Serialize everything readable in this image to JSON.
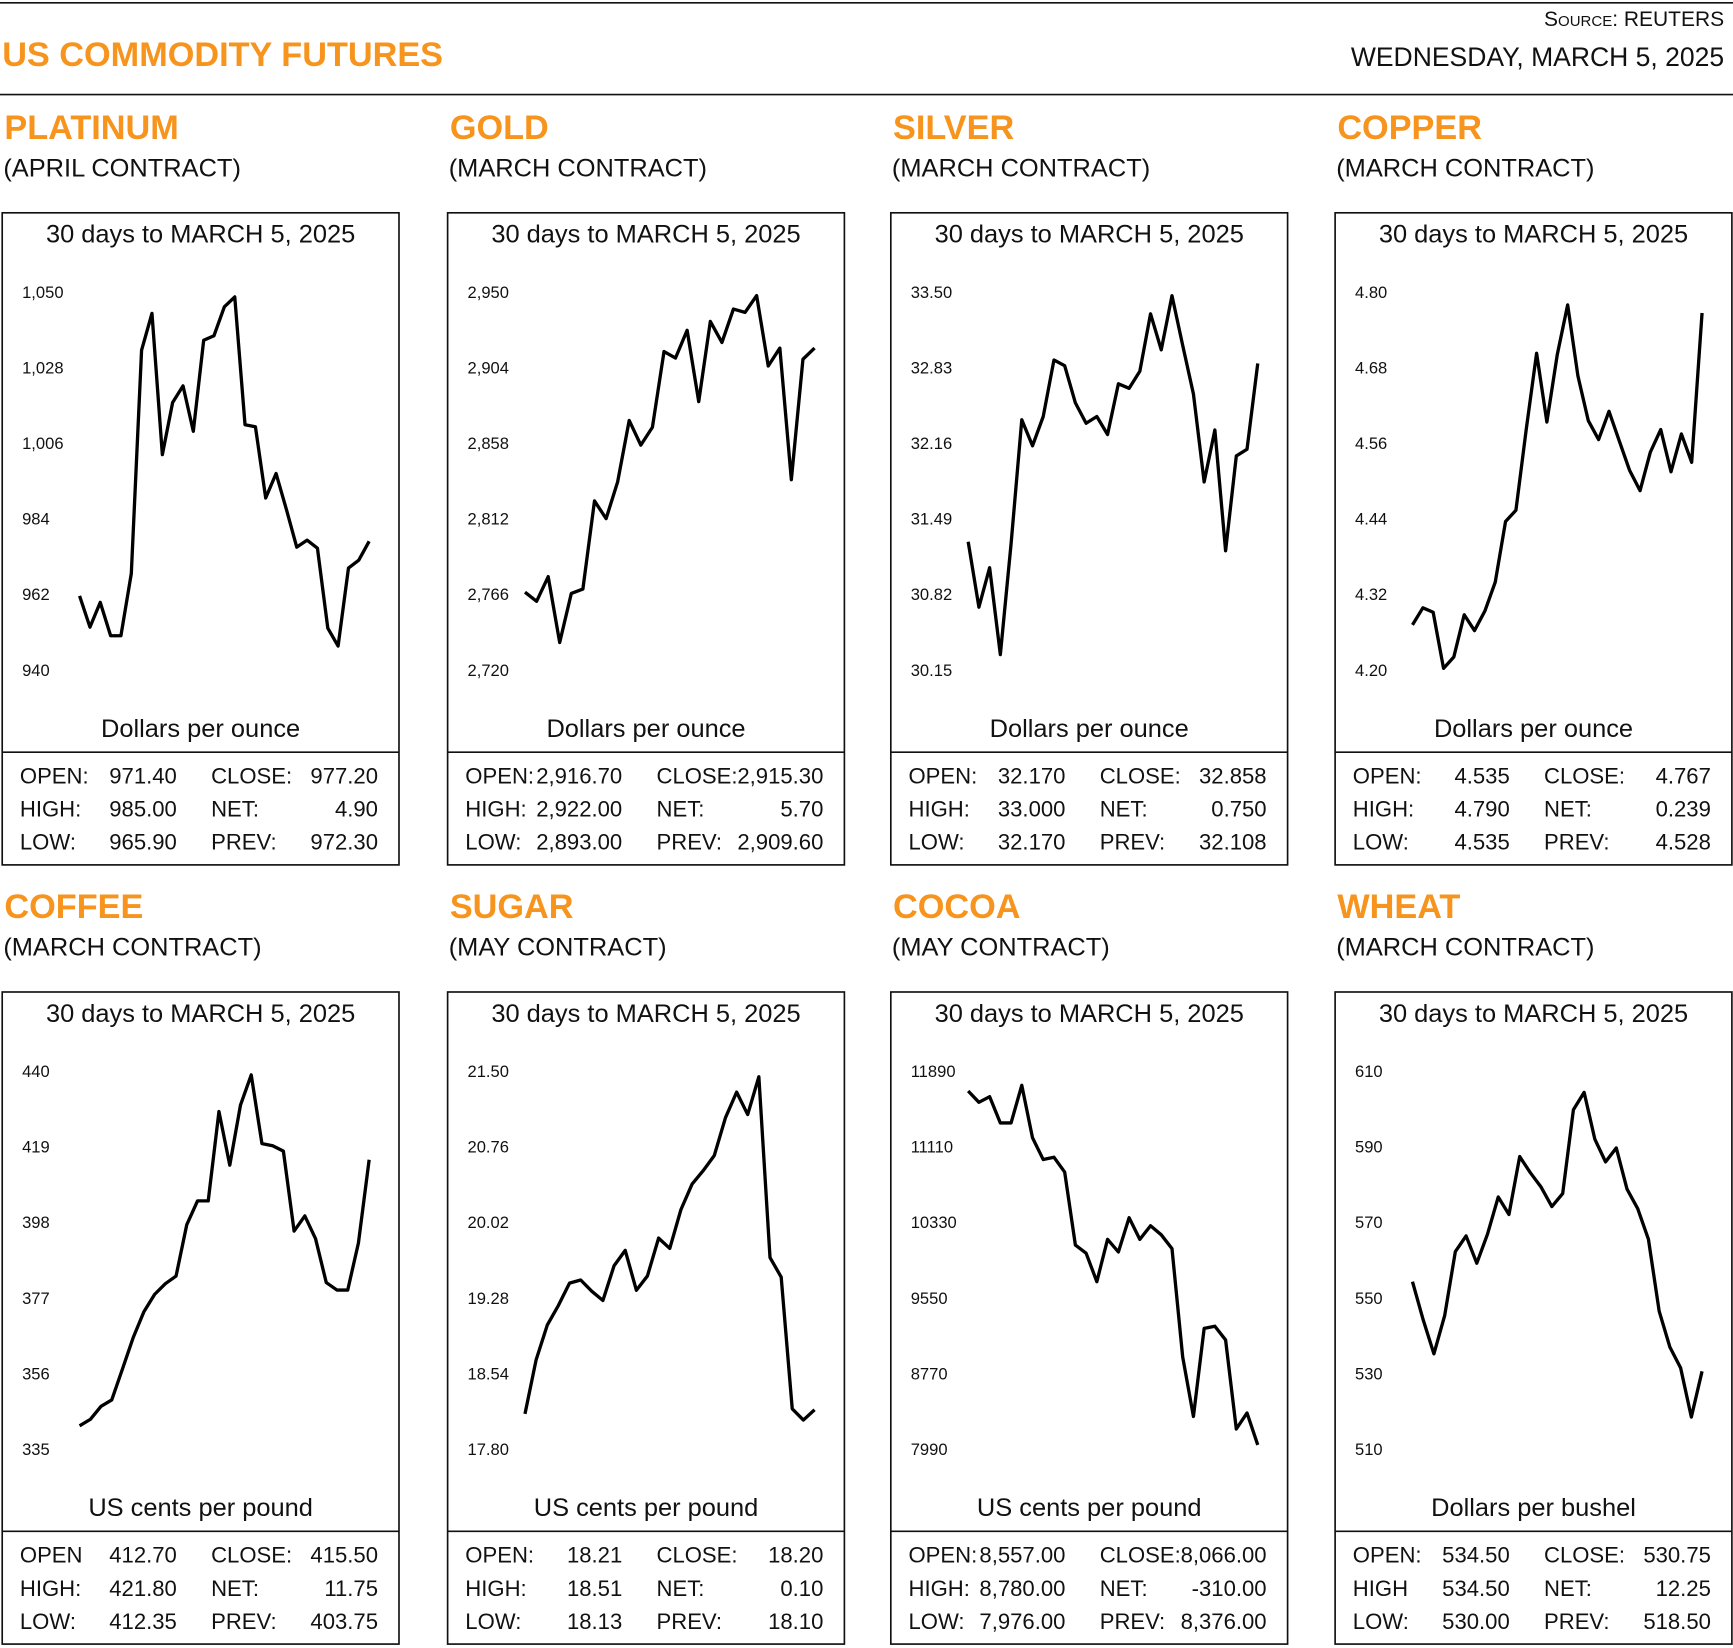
{
  "header": {
    "title": "US COMMODITY FUTURES",
    "source": "Source: REUTERS",
    "date": "WEDNESDAY, MARCH 5, 2025"
  },
  "chart_data": [
    {
      "type": "line",
      "title": "PLATINUM",
      "subtitle": "(APRIL CONTRACT)",
      "caption": "30 days to MARCH 5, 2025",
      "ylabel": "Dollars per ounce",
      "color": "#000000",
      "ylim": [
        940,
        1050
      ],
      "yticks": [
        940,
        962,
        984,
        {
          "value": 1006,
          "label": "1,006"
        },
        {
          "value": 1028,
          "label": "1,028"
        },
        {
          "value": 1050,
          "label": "1,050"
        }
      ],
      "values": [
        962.0,
        952.9,
        960.1,
        950.4,
        950.4,
        968.5,
        1033.5,
        1044.2,
        1003.1,
        1018.3,
        1023.1,
        1009.9,
        1036.4,
        1037.7,
        1046.1,
        1049.0,
        1011.8,
        1011.2,
        990.5,
        997.6,
        987.2,
        976.2,
        978.2,
        975.9,
        952.6,
        947.4,
        970.1,
        972.4,
        977.9
      ],
      "stats": [
        {
          "label": "OPEN:",
          "value": "971.40"
        },
        {
          "label": "HIGH:",
          "value": "985.00"
        },
        {
          "label": "LOW:",
          "value": "965.90"
        },
        {
          "label": "CLOSE:",
          "value": "977.20"
        },
        {
          "label": "NET:",
          "value": "4.90"
        },
        {
          "label": "PREV:",
          "value": "972.30"
        }
      ]
    },
    {
      "type": "line",
      "title": "GOLD",
      "subtitle": "(MARCH CONTRACT)",
      "caption": "30 days to MARCH 5, 2025",
      "ylabel": "Dollars per ounce",
      "color": "#000000",
      "ylim": [
        2720,
        2950
      ],
      "yticks": [
        {
          "value": 2720,
          "label": "2,720"
        },
        {
          "value": 2766,
          "label": "2,766"
        },
        {
          "value": 2812,
          "label": "2,812"
        },
        {
          "value": 2858,
          "label": "2,858"
        },
        {
          "value": 2904,
          "label": "2,904"
        },
        {
          "value": 2950,
          "label": "2,950"
        }
      ],
      "values": [
        2768.2,
        2762.7,
        2777.7,
        2737.6,
        2767.5,
        2770.2,
        2823.8,
        2813.0,
        2835.3,
        2872.7,
        2857.7,
        2868.6,
        2914.7,
        2910.7,
        2927.6,
        2884.2,
        2933.0,
        2920.2,
        2940.5,
        2938.5,
        2948.7,
        2905.9,
        2916.8,
        2836.7,
        2910.0,
        2916.8
      ],
      "stats": [
        {
          "label": "OPEN:",
          "value": "2,916.70"
        },
        {
          "label": "HIGH:",
          "value": "2,922.00"
        },
        {
          "label": "LOW:",
          "value": "2,893.00"
        },
        {
          "label": "CLOSE:",
          "value": "2,915.30"
        },
        {
          "label": "NET:",
          "value": "5.70"
        },
        {
          "label": "PREV:",
          "value": "2,909.60"
        }
      ]
    },
    {
      "type": "line",
      "title": "SILVER",
      "subtitle": "(MARCH CONTRACT)",
      "caption": "30 days to MARCH 5, 2025",
      "ylabel": "Dollars per ounce",
      "color": "#000000",
      "ylim": [
        30.15,
        33.5
      ],
      "yticks": [
        30.15,
        30.82,
        31.49,
        32.16,
        32.83,
        {
          "value": 33.5,
          "label": "33.50"
        }
      ],
      "values": [
        31.3,
        30.72,
        31.07,
        30.3,
        31.28,
        32.38,
        32.15,
        32.41,
        32.91,
        32.86,
        32.53,
        32.35,
        32.41,
        32.25,
        32.7,
        32.66,
        32.81,
        33.32,
        33.0,
        33.48,
        33.04,
        32.61,
        31.83,
        32.29,
        31.22,
        32.06,
        32.12,
        32.88
      ],
      "stats": [
        {
          "label": "OPEN:",
          "value": "32.170"
        },
        {
          "label": "HIGH:",
          "value": "33.000"
        },
        {
          "label": "LOW:",
          "value": "32.170"
        },
        {
          "label": "CLOSE:",
          "value": "32.858"
        },
        {
          "label": "NET:",
          "value": "0.750"
        },
        {
          "label": "PREV:",
          "value": "32.108"
        }
      ]
    },
    {
      "type": "line",
      "title": "COPPER",
      "subtitle": "(MARCH CONTRACT)",
      "caption": "30 days to MARCH 5, 2025",
      "ylabel": "Dollars per ounce",
      "color": "#000000",
      "ylim": [
        4.2,
        4.8
      ],
      "yticks": [
        {
          "value": 4.2,
          "label": "4.20"
        },
        4.32,
        4.44,
        4.56,
        4.68,
        {
          "value": 4.8,
          "label": "4.80"
        }
      ],
      "values": [
        4.274,
        4.301,
        4.294,
        4.205,
        4.223,
        4.29,
        4.265,
        4.296,
        4.342,
        4.438,
        4.456,
        4.584,
        4.705,
        4.596,
        4.703,
        4.782,
        4.669,
        4.598,
        4.568,
        4.613,
        4.566,
        4.519,
        4.487,
        4.548,
        4.584,
        4.517,
        4.577,
        4.532,
        4.769
      ],
      "stats": [
        {
          "label": "OPEN:",
          "value": "4.535"
        },
        {
          "label": "HIGH:",
          "value": "4.790"
        },
        {
          "label": "LOW:",
          "value": "4.535"
        },
        {
          "label": "CLOSE:",
          "value": "4.767"
        },
        {
          "label": "NET:",
          "value": "0.239"
        },
        {
          "label": "PREV:",
          "value": "4.528"
        }
      ]
    },
    {
      "type": "line",
      "title": "COFFEE",
      "subtitle": "(MARCH CONTRACT)",
      "caption": "30 days to MARCH 5, 2025",
      "ylabel": "US cents per pound",
      "color": "#000000",
      "ylim": [
        335,
        440
      ],
      "yticks": [
        335,
        356,
        377,
        398,
        419,
        440
      ],
      "values": [
        341.9,
        343.7,
        347.3,
        349.1,
        357.7,
        366.4,
        373.6,
        378.4,
        381.4,
        383.5,
        397.8,
        404.4,
        404.4,
        429.2,
        414.3,
        431.0,
        439.4,
        420.3,
        419.7,
        418.2,
        396.0,
        400.2,
        393.9,
        381.7,
        379.6,
        379.6,
        392.7,
        415.8
      ],
      "stats": [
        {
          "label": "OPEN",
          "value": "412.70"
        },
        {
          "label": "HIGH:",
          "value": "421.80"
        },
        {
          "label": "LOW:",
          "value": "412.35"
        },
        {
          "label": "CLOSE:",
          "value": "415.50"
        },
        {
          "label": "NET:",
          "value": "11.75"
        },
        {
          "label": "PREV:",
          "value": "403.75"
        }
      ]
    },
    {
      "type": "line",
      "title": "SUGAR",
      "subtitle": "(MAY CONTRACT)",
      "caption": "30 days to MARCH 5, 2025",
      "ylabel": "US cents per pound",
      "color": "#000000",
      "ylim": [
        17.8,
        21.5
      ],
      "yticks": [
        {
          "value": 17.8,
          "label": "17.80"
        },
        18.54,
        19.28,
        20.02,
        20.76,
        {
          "value": 21.5,
          "label": "21.50"
        }
      ],
      "values": [
        18.16,
        18.69,
        19.03,
        19.22,
        19.44,
        19.47,
        19.36,
        19.27,
        19.61,
        19.76,
        19.37,
        19.51,
        19.88,
        19.78,
        20.16,
        20.41,
        20.54,
        20.69,
        21.06,
        21.31,
        21.09,
        21.46,
        19.69,
        19.5,
        18.21,
        18.1,
        18.2
      ],
      "stats": [
        {
          "label": "OPEN:",
          "value": "18.21"
        },
        {
          "label": "HIGH:",
          "value": "18.51"
        },
        {
          "label": "LOW:",
          "value": "18.13"
        },
        {
          "label": "CLOSE:",
          "value": "18.20"
        },
        {
          "label": "NET:",
          "value": "0.10"
        },
        {
          "label": "PREV:",
          "value": "18.10"
        }
      ]
    },
    {
      "type": "line",
      "title": "COCOA",
      "subtitle": "(MAY CONTRACT)",
      "caption": "30 days to MARCH 5, 2025",
      "ylabel": "US cents per pound",
      "color": "#000000",
      "ylim": [
        7990,
        11890
      ],
      "yticks": [
        7990,
        8770,
        9550,
        10330,
        11110,
        11890
      ],
      "values": [
        11701,
        11584,
        11642,
        11371,
        11371,
        11760,
        11218,
        10994,
        11018,
        10865,
        10111,
        10028,
        9734,
        10170,
        10040,
        10394,
        10170,
        10311,
        10217,
        10075,
        8956,
        8343,
        9251,
        9274,
        9133,
        8214,
        8379,
        8049
      ],
      "stats": [
        {
          "label": "OPEN:",
          "value": "8,557.00"
        },
        {
          "label": "HIGH:",
          "value": "8,780.00"
        },
        {
          "label": "LOW:",
          "value": "7,976.00"
        },
        {
          "label": "CLOSE:",
          "value": "8,066.00"
        },
        {
          "label": "NET:",
          "value": "-310.00"
        },
        {
          "label": "PREV:",
          "value": "8,376.00"
        }
      ]
    },
    {
      "type": "line",
      "title": "WHEAT",
      "subtitle": "(MARCH CONTRACT)",
      "caption": "30 days to MARCH 5, 2025",
      "ylabel": "Dollars per bushel",
      "color": "#000000",
      "ylim": [
        510,
        610
      ],
      "yticks": [
        510,
        530,
        550,
        570,
        590,
        610
      ],
      "values": [
        554.7,
        544.6,
        535.6,
        545.7,
        562.7,
        566.8,
        559.6,
        567.3,
        577.1,
        572.5,
        587.8,
        583.5,
        579.7,
        574.6,
        578.0,
        600.2,
        604.8,
        592.4,
        586.4,
        590.1,
        579.2,
        574.0,
        565.9,
        546.9,
        537.4,
        531.9,
        518.9,
        531.0
      ],
      "stats": [
        {
          "label": "OPEN:",
          "value": "534.50"
        },
        {
          "label": "HIGH",
          "value": "534.50"
        },
        {
          "label": "LOW:",
          "value": "530.00"
        },
        {
          "label": "CLOSE:",
          "value": "530.75"
        },
        {
          "label": "NET:",
          "value": "12.25"
        },
        {
          "label": "PREV:",
          "value": "518.50"
        }
      ]
    }
  ]
}
